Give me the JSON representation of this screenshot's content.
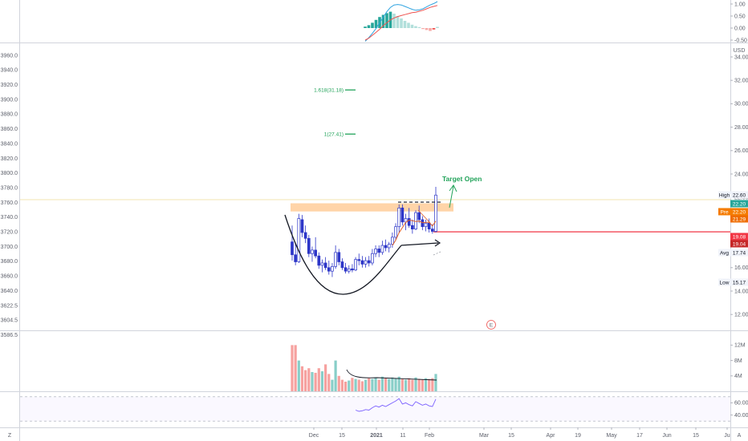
{
  "chart_data": {
    "type": "candlestick",
    "left_axis": {
      "ticks": [
        "3960.0",
        "3940.0",
        "3920.0",
        "3900.0",
        "3880.0",
        "3860.0",
        "3840.0",
        "3820.0",
        "3800.0",
        "3780.0",
        "3760.0",
        "3740.0",
        "3720.0",
        "3700.0",
        "3680.0",
        "3660.0",
        "3640.0",
        "3622.5",
        "3604.5",
        "3586.5"
      ]
    },
    "right_axis": {
      "unit": "USD",
      "ticks": [
        "34.00",
        "32.00",
        "30.00",
        "28.00",
        "26.00",
        "24.00",
        "22.00",
        "20.00",
        "18.00",
        "16.00",
        "14.00",
        "12.00"
      ],
      "range": [
        11.5,
        35.5
      ]
    },
    "top_axis": {
      "ticks": [
        "1.00",
        "0.50",
        "0.00",
        "-0.50"
      ]
    },
    "volume_axis": {
      "ticks": [
        "12M",
        "8M",
        "4M"
      ]
    },
    "rsi_axis": {
      "ticks": [
        "60.00",
        "40.00"
      ]
    },
    "x_axis": {
      "ticks": [
        "Dec",
        "15",
        "2021",
        "11",
        "Feb",
        "Mar",
        "15",
        "Apr",
        "19",
        "May",
        "17",
        "Jun",
        "15",
        "Ju"
      ]
    },
    "candles": [
      {
        "o": 18.2,
        "h": 19.6,
        "l": 16.6,
        "c": 17.1
      },
      {
        "o": 17.1,
        "h": 18.1,
        "l": 16.2,
        "c": 16.5
      },
      {
        "o": 16.5,
        "h": 20.6,
        "l": 16.4,
        "c": 20.2
      },
      {
        "o": 20.1,
        "h": 20.5,
        "l": 18.6,
        "c": 19.0
      },
      {
        "o": 19.0,
        "h": 19.6,
        "l": 18.1,
        "c": 18.5
      },
      {
        "o": 18.5,
        "h": 18.8,
        "l": 16.9,
        "c": 17.2
      },
      {
        "o": 17.2,
        "h": 17.8,
        "l": 16.5,
        "c": 17.5
      },
      {
        "o": 17.5,
        "h": 18.6,
        "l": 16.8,
        "c": 17.0
      },
      {
        "o": 17.0,
        "h": 17.3,
        "l": 15.9,
        "c": 16.2
      },
      {
        "o": 16.2,
        "h": 16.7,
        "l": 15.6,
        "c": 16.4
      },
      {
        "o": 16.4,
        "h": 16.9,
        "l": 15.8,
        "c": 16.0
      },
      {
        "o": 16.0,
        "h": 16.6,
        "l": 15.4,
        "c": 15.7
      },
      {
        "o": 15.7,
        "h": 16.4,
        "l": 15.2,
        "c": 16.1
      },
      {
        "o": 16.1,
        "h": 17.9,
        "l": 15.9,
        "c": 17.3
      },
      {
        "o": 17.3,
        "h": 17.6,
        "l": 16.2,
        "c": 16.5
      },
      {
        "o": 16.5,
        "h": 16.8,
        "l": 15.8,
        "c": 16.0
      },
      {
        "o": 16.0,
        "h": 16.4,
        "l": 15.5,
        "c": 15.7
      },
      {
        "o": 15.7,
        "h": 16.2,
        "l": 15.5,
        "c": 15.9
      },
      {
        "o": 15.9,
        "h": 16.3,
        "l": 15.6,
        "c": 15.8
      },
      {
        "o": 15.8,
        "h": 16.9,
        "l": 15.7,
        "c": 16.7
      },
      {
        "o": 16.7,
        "h": 17.2,
        "l": 16.2,
        "c": 16.6
      },
      {
        "o": 16.6,
        "h": 17.0,
        "l": 16.0,
        "c": 16.3
      },
      {
        "o": 16.3,
        "h": 16.9,
        "l": 16.0,
        "c": 16.6
      },
      {
        "o": 16.6,
        "h": 17.0,
        "l": 16.1,
        "c": 16.4
      },
      {
        "o": 16.4,
        "h": 17.6,
        "l": 16.2,
        "c": 17.2
      },
      {
        "o": 17.2,
        "h": 17.9,
        "l": 16.9,
        "c": 17.6
      },
      {
        "o": 17.6,
        "h": 17.9,
        "l": 16.9,
        "c": 17.3
      },
      {
        "o": 17.3,
        "h": 18.3,
        "l": 17.1,
        "c": 17.9
      },
      {
        "o": 17.9,
        "h": 18.4,
        "l": 17.4,
        "c": 17.7
      },
      {
        "o": 17.7,
        "h": 18.2,
        "l": 17.3,
        "c": 18.0
      },
      {
        "o": 18.0,
        "h": 19.0,
        "l": 17.7,
        "c": 18.6
      },
      {
        "o": 18.6,
        "h": 19.8,
        "l": 18.3,
        "c": 19.5
      },
      {
        "o": 19.5,
        "h": 21.4,
        "l": 19.0,
        "c": 21.1
      },
      {
        "o": 21.1,
        "h": 21.4,
        "l": 19.6,
        "c": 19.9
      },
      {
        "o": 19.9,
        "h": 20.6,
        "l": 19.2,
        "c": 20.2
      },
      {
        "o": 20.2,
        "h": 21.1,
        "l": 19.4,
        "c": 19.6
      },
      {
        "o": 19.6,
        "h": 20.1,
        "l": 18.9,
        "c": 19.3
      },
      {
        "o": 19.3,
        "h": 20.9,
        "l": 19.2,
        "c": 20.7
      },
      {
        "o": 20.7,
        "h": 21.3,
        "l": 19.8,
        "c": 20.1
      },
      {
        "o": 20.1,
        "h": 20.4,
        "l": 19.2,
        "c": 19.5
      },
      {
        "o": 19.5,
        "h": 20.1,
        "l": 19.1,
        "c": 19.8
      },
      {
        "o": 19.8,
        "h": 20.2,
        "l": 19.0,
        "c": 19.3
      },
      {
        "o": 19.3,
        "h": 19.7,
        "l": 18.9,
        "c": 19.1
      },
      {
        "o": 19.1,
        "h": 22.9,
        "l": 19.0,
        "c": 22.2
      }
    ],
    "volume_m": [
      12,
      12,
      8,
      6.5,
      5.5,
      6,
      5,
      4.8,
      6,
      5.2,
      7,
      4.5,
      3,
      8,
      4,
      3,
      2.5,
      2.8,
      3.5,
      3.2,
      3,
      2.6,
      3,
      3.4,
      3.2,
      3.6,
      3,
      3.8,
      3.4,
      3.2,
      3.6,
      3.4,
      3.8,
      3.2,
      3,
      3.4,
      3,
      3.6,
      3.2,
      3,
      3.4,
      3.2,
      3.4,
      4.5
    ],
    "rsi": [
      null,
      null,
      null,
      null,
      null,
      null,
      null,
      null,
      null,
      null,
      null,
      null,
      null,
      null,
      null,
      null,
      null,
      null,
      null,
      48,
      46,
      47,
      49,
      48,
      52,
      55,
      53,
      56,
      54,
      57,
      60,
      63,
      67,
      58,
      60,
      57,
      55,
      62,
      59,
      56,
      58,
      55,
      54,
      66
    ],
    "oscillator": {
      "histogram": [
        0.06,
        0.12,
        0.22,
        0.34,
        0.46,
        0.55,
        0.62,
        0.68,
        0.6,
        0.5,
        0.4,
        0.3,
        0.22,
        0.14,
        0.08,
        0.04,
        -0.04,
        -0.08,
        -0.12,
        -0.06,
        0.05
      ],
      "signal": [
        -0.5,
        -0.42,
        -0.3,
        -0.18,
        -0.05,
        0.1,
        0.22,
        0.34,
        0.42,
        0.48,
        0.52,
        0.56,
        0.6,
        0.64,
        0.66,
        0.7,
        0.74,
        0.8,
        0.86,
        0.9,
        0.94
      ],
      "main": [
        -0.55,
        -0.4,
        -0.22,
        -0.02,
        0.22,
        0.45,
        0.68,
        0.86,
        0.96,
        0.98,
        0.96,
        0.9,
        0.84,
        0.78,
        0.74,
        0.76,
        0.8,
        0.88,
        0.96,
        1.02,
        1.1
      ]
    },
    "fib_levels": [
      {
        "label": "1.618(31.18)",
        "value": 31.18
      },
      {
        "label": "1(27.41)",
        "value": 27.41
      }
    ],
    "annotations": {
      "target_text": "Target Open",
      "event_marker": "E"
    },
    "horizontal_lines": {
      "red_support": 19.06,
      "orange_zone": [
        20.8,
        21.5
      ],
      "dashed_top": 21.6
    },
    "price_labels": {
      "high": {
        "name": "High",
        "value": "22.60"
      },
      "last_green": {
        "value": "22.20"
      },
      "pre": {
        "name": "Pre",
        "value": "22.20"
      },
      "orange": {
        "value": "21.29"
      },
      "red1": {
        "value": "19.08"
      },
      "red2": {
        "value": "19.04"
      },
      "avg": {
        "name": "Avg",
        "value": "17.74"
      },
      "low": {
        "name": "Low",
        "value": "15.17"
      }
    },
    "colors": {
      "up": "#26a69a",
      "down": "#ef5350",
      "candle": "#2d36c8",
      "support": "#f23645",
      "fib": "#22a35a",
      "zone": "#ffcc99",
      "rsi": "#7b61ff",
      "osc_main": "#2ea3e0",
      "osc_signal": "#ef5350"
    },
    "footer_left": "Z",
    "footer_right": "A"
  }
}
